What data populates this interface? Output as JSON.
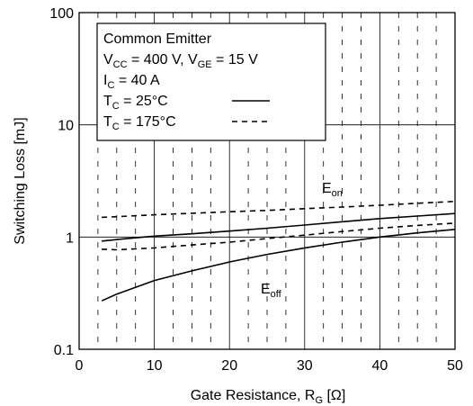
{
  "chart_data": {
    "type": "line",
    "xlabel": "Gate Resistance, R",
    "xlabel_sub": "G",
    "xlabel_unit": " [Ω]",
    "ylabel": "Switching Loss [mJ]",
    "xlim": [
      0,
      50
    ],
    "ylim": [
      0.1,
      100
    ],
    "yscale": "log",
    "x_ticks": [
      "0",
      "10",
      "20",
      "30",
      "40",
      "50"
    ],
    "y_ticks": [
      "0.1",
      "1",
      "10",
      "100"
    ],
    "grid": true,
    "legend": {
      "placement": "top-left",
      "line1": "Common Emitter",
      "line2_a": "V",
      "line2_sub_a": "CC",
      "line2_b": " = 400 V, V",
      "line2_sub_b": "GE",
      "line2_c": " = 15 V",
      "line3_a": "I",
      "line3_sub": "C",
      "line3_b": " = 40 A",
      "entries": [
        {
          "prefix": "T",
          "sub": "C",
          "suffix": " = 25°C",
          "style": "solid"
        },
        {
          "prefix": "T",
          "sub": "C",
          "suffix": " = 175°C",
          "style": "dashed"
        }
      ]
    },
    "annotations": [
      {
        "text": "E",
        "sub": "on"
      },
      {
        "text": "E",
        "sub": "off"
      }
    ],
    "series": [
      {
        "curve": "E_on",
        "temperature": "175°C",
        "style": "dashed",
        "x": [
          3,
          5,
          10,
          15,
          20,
          25,
          30,
          35,
          40,
          45,
          50
        ],
        "y": [
          1.5,
          1.52,
          1.58,
          1.63,
          1.68,
          1.73,
          1.79,
          1.85,
          1.92,
          2.0,
          2.08
        ]
      },
      {
        "curve": "E_on",
        "temperature": "25°C",
        "style": "solid",
        "x": [
          3,
          5,
          10,
          15,
          20,
          25,
          30,
          35,
          40,
          45,
          50
        ],
        "y": [
          0.92,
          0.95,
          1.02,
          1.07,
          1.13,
          1.2,
          1.28,
          1.37,
          1.46,
          1.54,
          1.62
        ]
      },
      {
        "curve": "E_off",
        "temperature": "175°C",
        "style": "dashed",
        "x": [
          3,
          5,
          10,
          15,
          20,
          25,
          30,
          35,
          40,
          45,
          50
        ],
        "y": [
          0.78,
          0.77,
          0.8,
          0.85,
          0.9,
          0.97,
          1.04,
          1.12,
          1.2,
          1.27,
          1.33
        ]
      },
      {
        "curve": "E_off",
        "temperature": "25°C",
        "style": "solid",
        "x": [
          3,
          5,
          10,
          15,
          20,
          25,
          30,
          35,
          40,
          45,
          50
        ],
        "y": [
          0.27,
          0.31,
          0.41,
          0.5,
          0.6,
          0.7,
          0.8,
          0.9,
          1.0,
          1.09,
          1.17
        ]
      }
    ]
  }
}
